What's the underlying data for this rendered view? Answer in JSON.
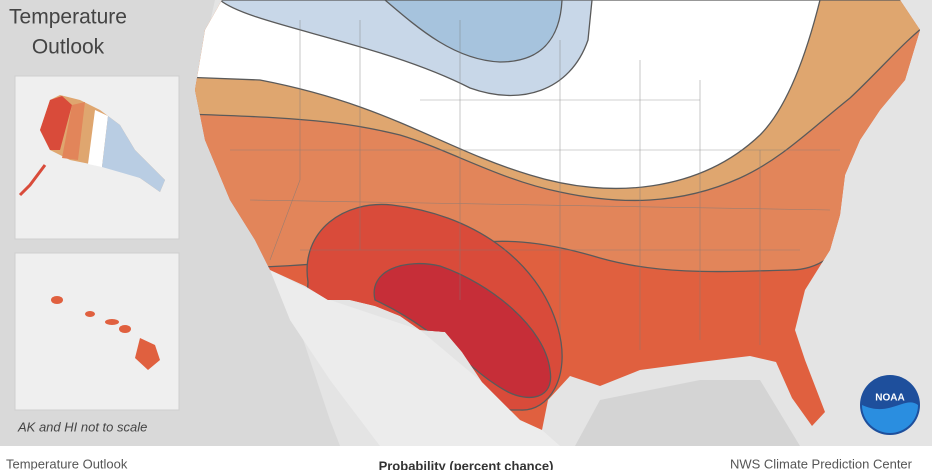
{
  "map": {
    "title_lines": [
      "Temperature",
      "Outlook"
    ],
    "inset_note": "AK and HI not to scale",
    "logo": "NOAA"
  },
  "footer": {
    "left": "Temperature Outlook",
    "center": "Probability (percent chance)",
    "right": "NWS Climate Prediction Center"
  }
}
